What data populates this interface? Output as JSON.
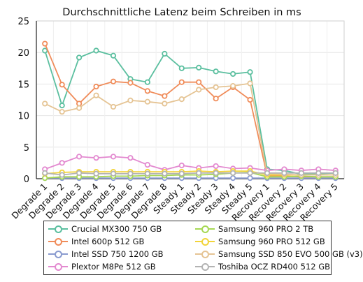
{
  "chart_data": {
    "type": "line",
    "title": "Durchschnittliche Latenz beim Schreiben in ms",
    "xlabel": "",
    "ylabel": "",
    "ylim": [
      0,
      25
    ],
    "yticks": [
      0,
      5,
      10,
      15,
      20,
      25
    ],
    "grid": true,
    "legend_position": "bottom",
    "categories": [
      "Degrade 1",
      "Degrade 2",
      "Degrade 3",
      "Degrade 4",
      "Degrade 5",
      "Degrade 6",
      "Degrade 7",
      "Degrade 8",
      "Steady 1",
      "Steady 2",
      "Steady 3",
      "Steady 4",
      "Steady 5",
      "Recovery 1",
      "Recovery 2",
      "Recovery 3",
      "Recovery 4",
      "Recovery 5"
    ],
    "series": [
      {
        "name": "Crucial MX300 750 GB",
        "color": "#5bbf9f",
        "values": [
          20.3,
          11.6,
          19.2,
          20.3,
          19.5,
          15.8,
          15.3,
          19.8,
          17.5,
          17.6,
          17.0,
          16.6,
          16.9,
          1.5,
          1.3,
          0.7,
          0.8,
          0.9
        ]
      },
      {
        "name": "Intel 600p 512 GB",
        "color": "#f08c5a",
        "values": [
          21.4,
          14.9,
          11.9,
          14.6,
          15.4,
          15.2,
          13.9,
          13.1,
          15.3,
          15.3,
          12.7,
          14.5,
          12.5,
          0.5,
          0.4,
          0.3,
          0.3,
          0.3
        ]
      },
      {
        "name": "Intel SSD 750 1200 GB",
        "color": "#8a9bcf",
        "values": [
          0.1,
          0.1,
          0.1,
          0.1,
          0.1,
          0.1,
          0.1,
          0.1,
          0.1,
          0.1,
          0.1,
          0.1,
          0.1,
          0.1,
          0.1,
          0.1,
          0.1,
          0.1
        ]
      },
      {
        "name": "Plextor M8Pe 512 GB",
        "color": "#e38ad0",
        "values": [
          1.5,
          2.5,
          3.5,
          3.3,
          3.5,
          3.3,
          2.2,
          1.4,
          2.1,
          1.7,
          2.0,
          1.6,
          1.7,
          1.3,
          1.5,
          1.3,
          1.5,
          1.3
        ]
      },
      {
        "name": "Samsung 960 PRO 2 TB",
        "color": "#a6d854",
        "values": [
          0.1,
          0.3,
          0.3,
          0.3,
          0.4,
          0.4,
          0.5,
          0.5,
          0.6,
          0.6,
          0.7,
          0.9,
          1.0,
          0.3,
          0.3,
          0.4,
          0.3,
          0.3
        ]
      },
      {
        "name": "Samsung 960 PRO 512 GB",
        "color": "#f2d43a",
        "values": [
          0.8,
          1.0,
          1.1,
          1.1,
          1.1,
          1.1,
          1.1,
          1.1,
          1.1,
          1.2,
          1.1,
          1.2,
          1.2,
          0.6,
          0.6,
          0.6,
          0.6,
          0.6
        ]
      },
      {
        "name": "Samsung SSD 850 EVO 500 GB (v3)",
        "color": "#e5c494",
        "values": [
          11.9,
          10.6,
          11.2,
          13.2,
          11.4,
          12.4,
          12.2,
          11.9,
          12.6,
          14.1,
          14.5,
          14.7,
          15.1,
          0.8,
          0.7,
          0.6,
          0.6,
          0.6
        ]
      },
      {
        "name": "Toshiba OCZ RD400 512 GB",
        "color": "#b3b3b3",
        "values": [
          0.9,
          0.6,
          0.9,
          0.8,
          0.8,
          0.8,
          0.8,
          0.8,
          0.8,
          0.9,
          0.9,
          0.9,
          0.9,
          0.9,
          0.9,
          0.9,
          0.9,
          0.9
        ]
      }
    ]
  }
}
